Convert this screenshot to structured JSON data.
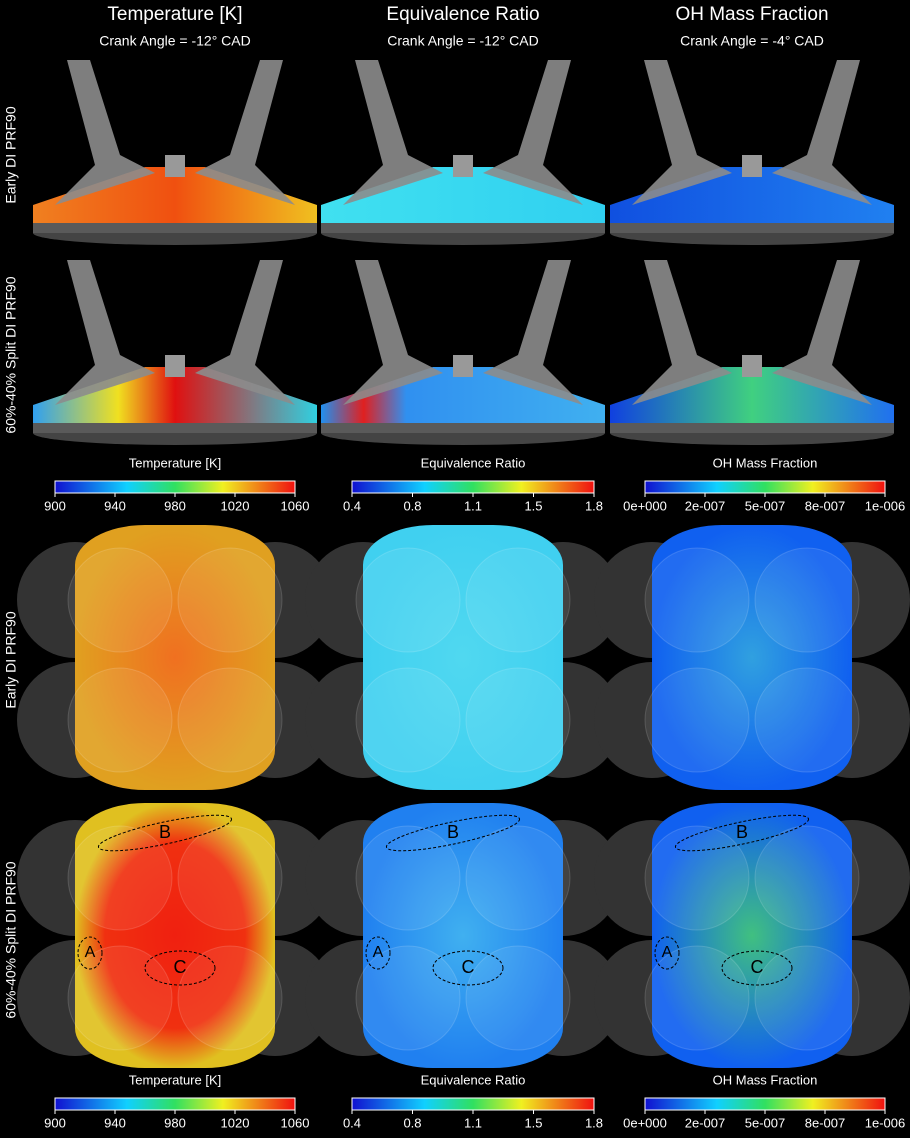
{
  "columns": [
    {
      "title": "Temperature [K]",
      "crank_angle": "Crank Angle = -12° CAD"
    },
    {
      "title": "Equivalence Ratio",
      "crank_angle": "Crank Angle = -12° CAD"
    },
    {
      "title": "OH Mass Fraction",
      "crank_angle": "Crank Angle = -4° CAD"
    }
  ],
  "side_view": {
    "rows": [
      "Early DI PRF90",
      "60%-40% Split DI PRF90"
    ],
    "colorbars": [
      {
        "label": "Temperature [K]",
        "ticks": [
          "900",
          "940",
          "980",
          "1020",
          "1060"
        ]
      },
      {
        "label": "Equivalence Ratio",
        "ticks": [
          "0.4",
          "0.8",
          "1.1",
          "1.5",
          "1.8"
        ]
      },
      {
        "label": "OH Mass Fraction",
        "ticks": [
          "0e+000",
          "2e-007",
          "5e-007",
          "8e-007",
          "1e-006"
        ]
      }
    ]
  },
  "top_view": {
    "rows": [
      "Early DI PRF90",
      "60%-40% Split DI PRF90"
    ],
    "colorbars": [
      {
        "label": "Temperature [K]",
        "ticks": [
          "900",
          "940",
          "980",
          "1020",
          "1060"
        ]
      },
      {
        "label": "Equivalence Ratio",
        "ticks": [
          "0.4",
          "0.8",
          "1.1",
          "1.5",
          "1.8"
        ]
      },
      {
        "label": "OH Mass Fraction",
        "ticks": [
          "0e+000",
          "2e-007",
          "5e-007",
          "8e-007",
          "1e-006"
        ]
      }
    ],
    "annotations": [
      "A",
      "B",
      "C"
    ]
  }
}
